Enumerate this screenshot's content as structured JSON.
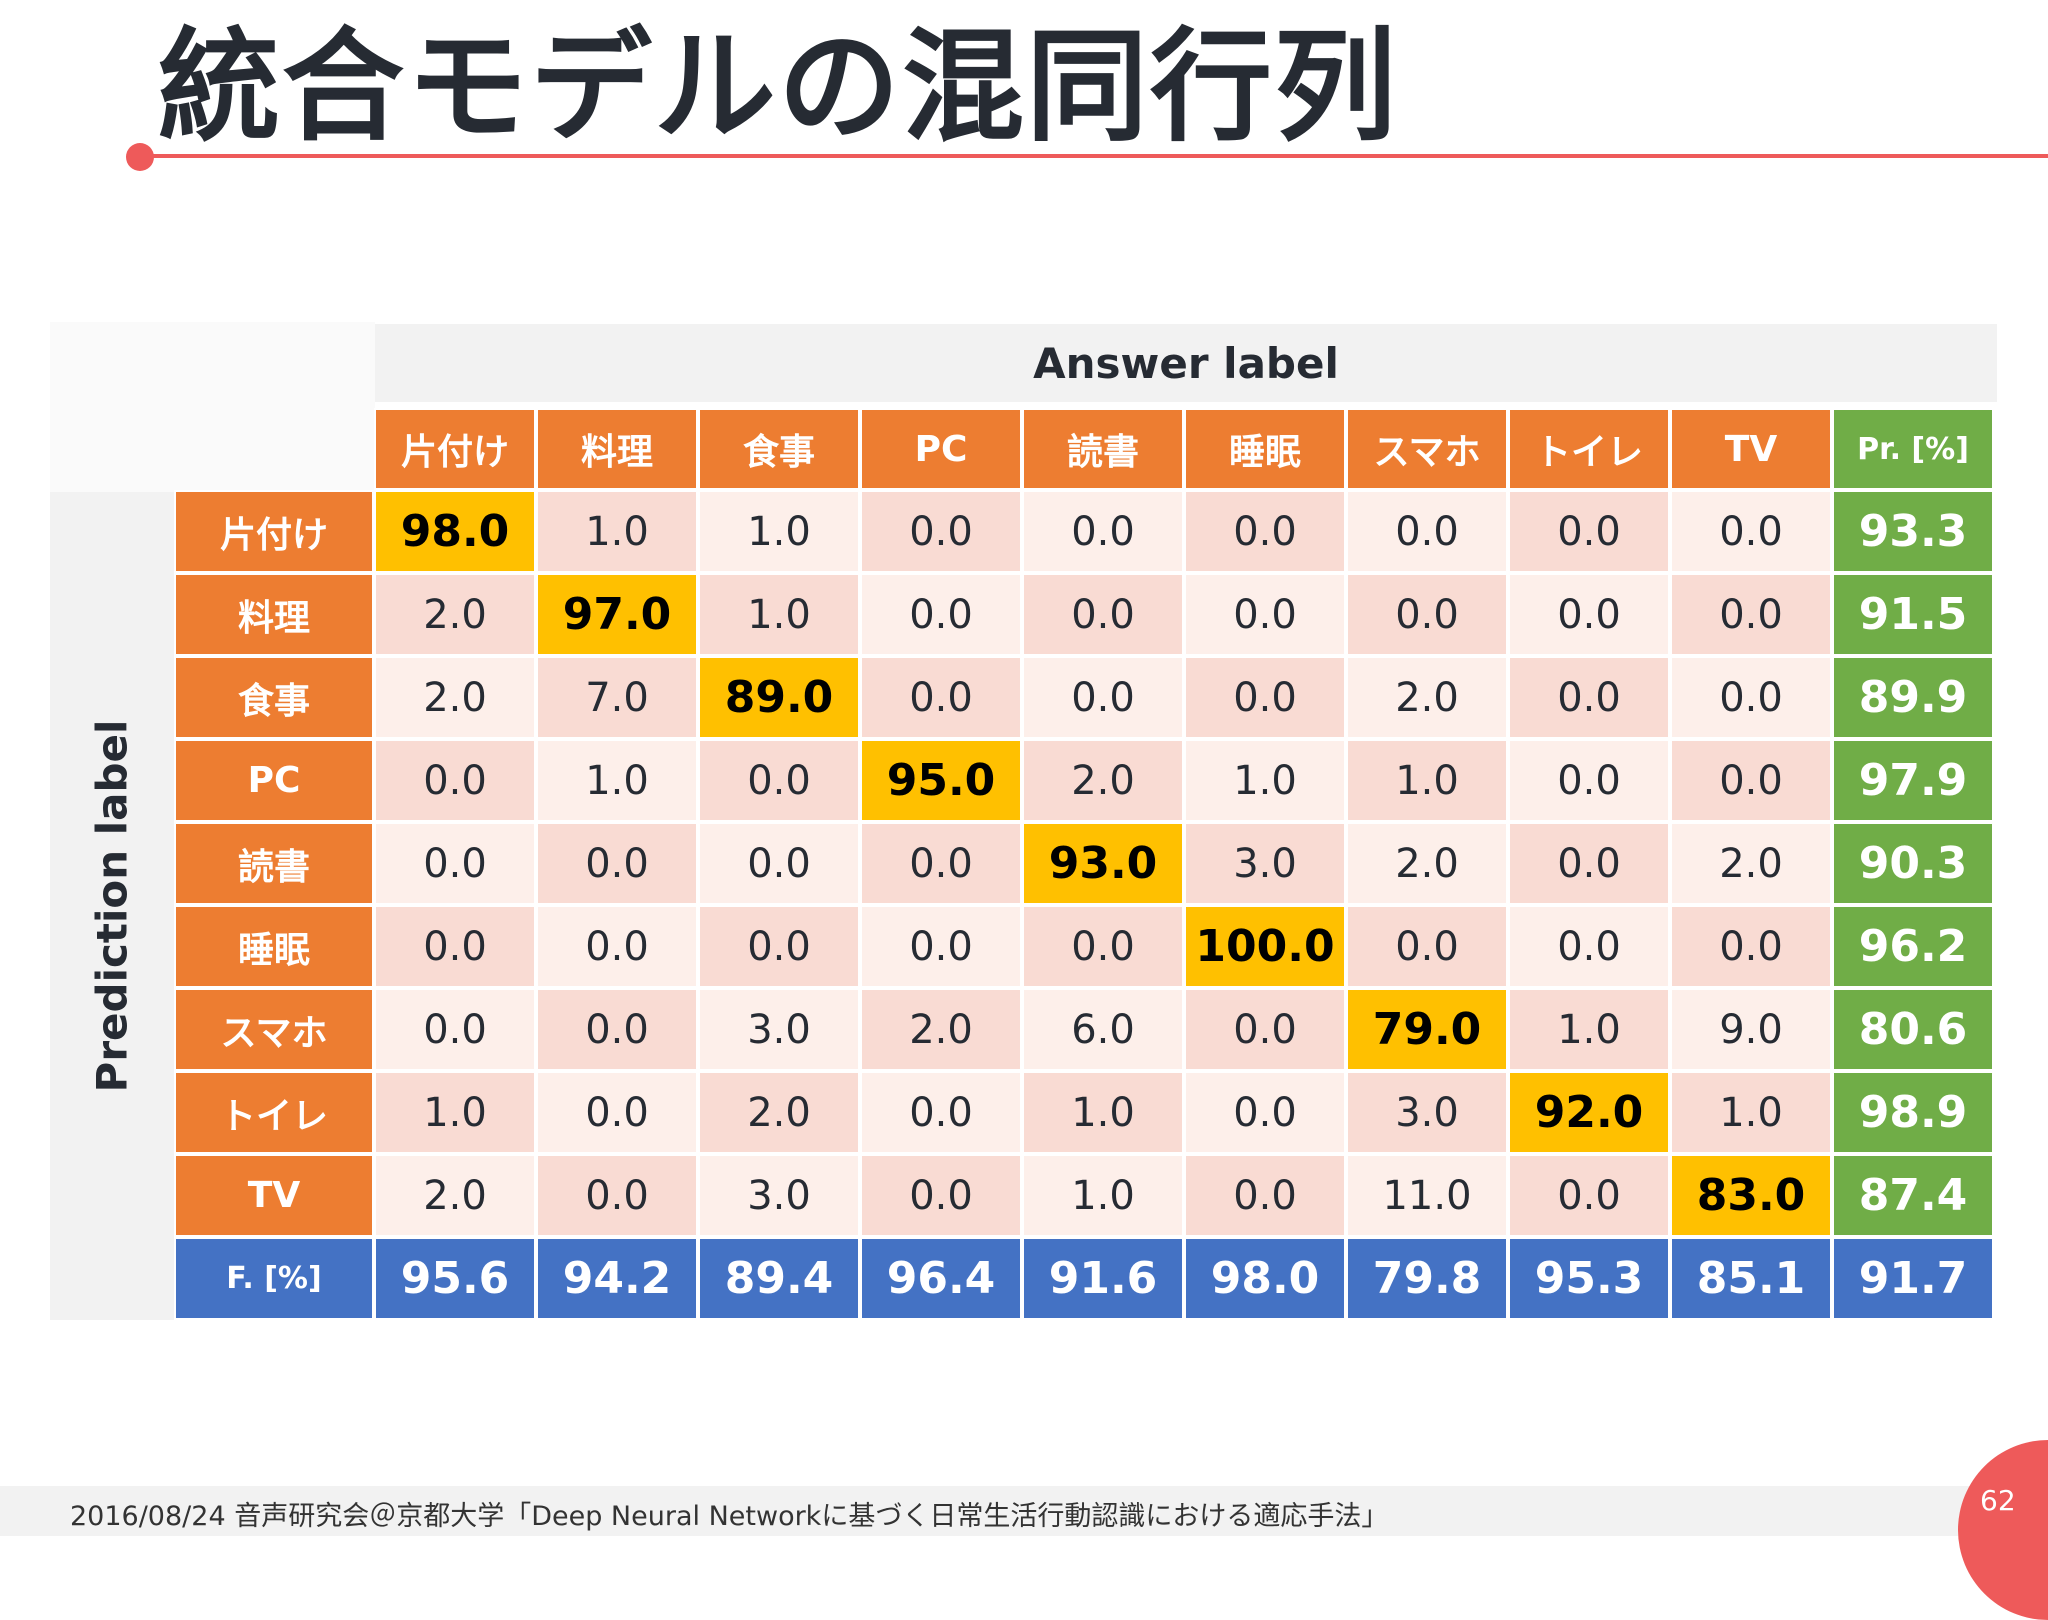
{
  "slide": {
    "title": "統合モデルの混同行列",
    "answer_label": "Answer label",
    "prediction_label": "Prediction label"
  },
  "matrix": {
    "columns": [
      "片付け",
      "料理",
      "食事",
      "PC",
      "読書",
      "睡眠",
      "スマホ",
      "トイレ",
      "TV"
    ],
    "precision_header": "Pr. [%]",
    "rows": [
      {
        "label": "片付け",
        "values": [
          "98.0",
          "1.0",
          "1.0",
          "0.0",
          "0.0",
          "0.0",
          "0.0",
          "0.0",
          "0.0"
        ],
        "pr": "93.3"
      },
      {
        "label": "料理",
        "values": [
          "2.0",
          "97.0",
          "1.0",
          "0.0",
          "0.0",
          "0.0",
          "0.0",
          "0.0",
          "0.0"
        ],
        "pr": "91.5"
      },
      {
        "label": "食事",
        "values": [
          "2.0",
          "7.0",
          "89.0",
          "0.0",
          "0.0",
          "0.0",
          "2.0",
          "0.0",
          "0.0"
        ],
        "pr": "89.9"
      },
      {
        "label": "PC",
        "values": [
          "0.0",
          "1.0",
          "0.0",
          "95.0",
          "2.0",
          "1.0",
          "1.0",
          "0.0",
          "0.0"
        ],
        "pr": "97.9"
      },
      {
        "label": "読書",
        "values": [
          "0.0",
          "0.0",
          "0.0",
          "0.0",
          "93.0",
          "3.0",
          "2.0",
          "0.0",
          "2.0"
        ],
        "pr": "90.3"
      },
      {
        "label": "睡眠",
        "values": [
          "0.0",
          "0.0",
          "0.0",
          "0.0",
          "0.0",
          "100.0",
          "0.0",
          "0.0",
          "0.0"
        ],
        "pr": "96.2"
      },
      {
        "label": "スマホ",
        "values": [
          "0.0",
          "0.0",
          "3.0",
          "2.0",
          "6.0",
          "0.0",
          "79.0",
          "1.0",
          "9.0"
        ],
        "pr": "80.6"
      },
      {
        "label": "トイレ",
        "values": [
          "1.0",
          "0.0",
          "2.0",
          "0.0",
          "1.0",
          "0.0",
          "3.0",
          "92.0",
          "1.0"
        ],
        "pr": "98.9"
      },
      {
        "label": "TV",
        "values": [
          "2.0",
          "0.0",
          "3.0",
          "0.0",
          "1.0",
          "0.0",
          "11.0",
          "0.0",
          "83.0"
        ],
        "pr": "87.4"
      }
    ],
    "f_label": "F. [%]",
    "f_values": [
      "95.6",
      "94.2",
      "89.4",
      "96.4",
      "91.6",
      "98.0",
      "79.8",
      "95.3",
      "85.1"
    ],
    "f_overall": "91.7"
  },
  "footer": {
    "text": "2016/08/24  音声研究会＠京都大学「Deep Neural Networkに基づく日常生活行動認識における適応手法」",
    "page_number": "62"
  },
  "colors": {
    "header_orange": "#ed7d31",
    "diagonal_yellow": "#ffc000",
    "precision_green": "#70ad47",
    "f_blue": "#4472c4",
    "accent_red": "#ee5a5a"
  }
}
